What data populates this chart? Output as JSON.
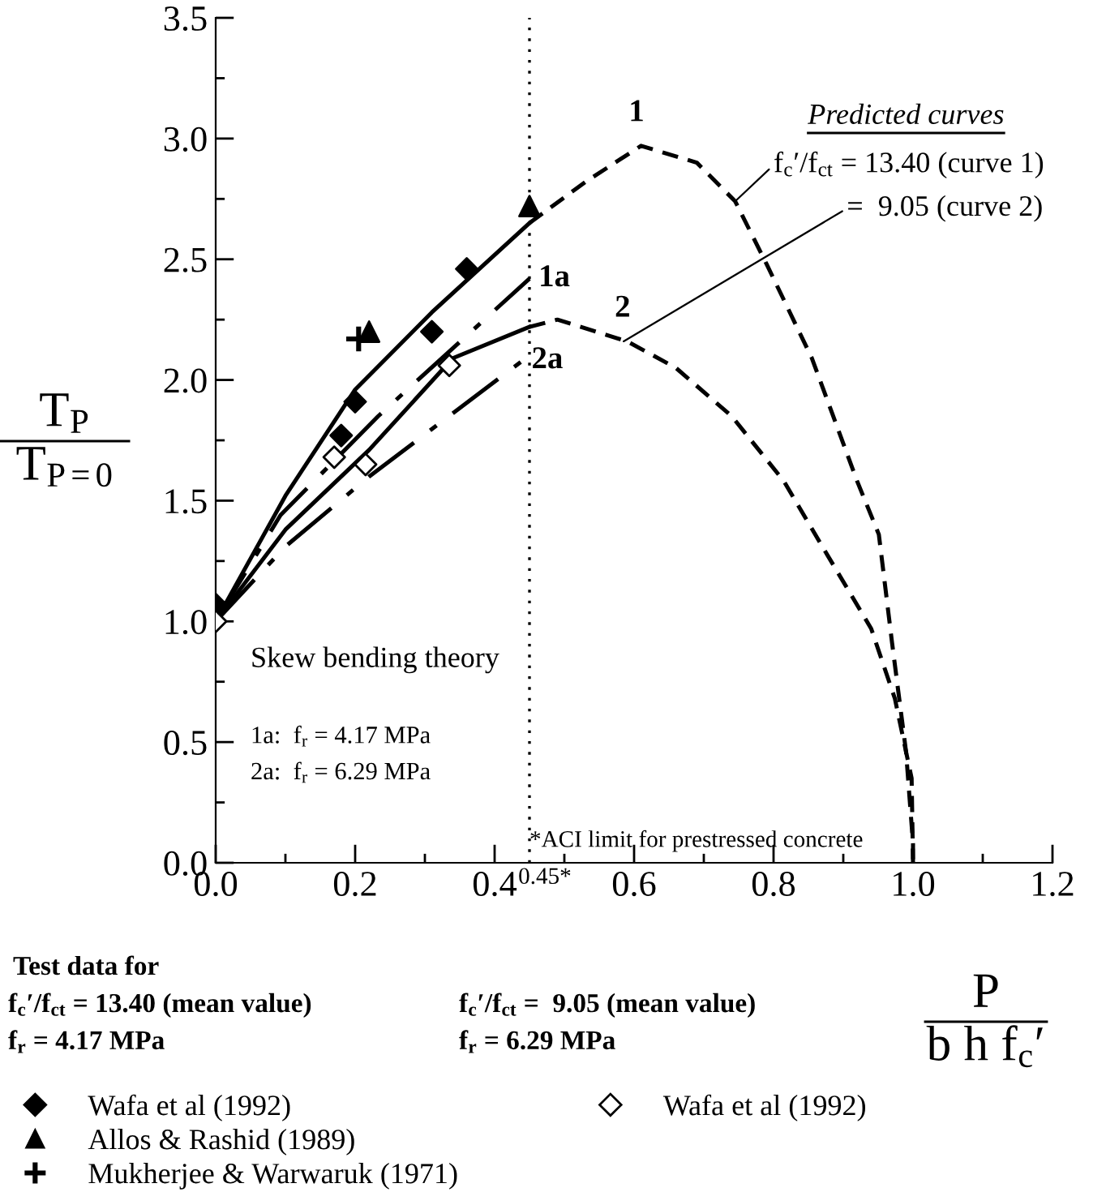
{
  "chart_data": {
    "type": "line",
    "xlabel": "P\nb h f$_{c}$′",
    "ylabel": "T$_{P}$\nT$_{P=0}$",
    "xlim": [
      0,
      1.2
    ],
    "ylim": [
      0,
      3.5
    ],
    "xticks": [
      {
        "value": 0,
        "label": "0.0"
      },
      {
        "value": 0.1,
        "label": null
      },
      0.2,
      {
        "value": 0.3,
        "label": null
      },
      0.4,
      {
        "value": 0.5,
        "label": null
      },
      0.6,
      {
        "value": 0.7,
        "label": null
      },
      0.8,
      {
        "value": 0.9,
        "label": null
      },
      {
        "value": 1,
        "label": "1.0"
      },
      {
        "value": 1.1,
        "label": null
      },
      1.2
    ],
    "yticks": [
      {
        "value": 0,
        "label": "0.0"
      },
      {
        "value": 0.25,
        "label": null
      },
      0.5,
      {
        "value": 0.75,
        "label": null
      },
      {
        "value": 1,
        "label": "1.0"
      },
      {
        "value": 1.25,
        "label": null
      },
      1.5,
      {
        "value": 1.75,
        "label": null
      },
      {
        "value": 2,
        "label": "2.0"
      },
      {
        "value": 2.25,
        "label": null
      },
      2.5,
      {
        "value": 2.75,
        "label": null
      },
      {
        "value": 3,
        "label": "3.0"
      },
      {
        "value": 3.25,
        "label": null
      },
      3.5
    ],
    "grid": false,
    "legend": "bottom left",
    "series": [
      {
        "line_style": "solid",
        "color": "#000000",
        "x": [
          0,
          0.1,
          0.2,
          0.31,
          0.45
        ],
        "values": [
          1.0,
          1.52,
          1.96,
          2.28,
          2.65
        ]
      },
      {
        "name": "1",
        "line_style": "dashed",
        "color": "#000000",
        "x": [
          0.45,
          0.53,
          0.61,
          0.69,
          0.745,
          0.79,
          0.855,
          0.92,
          0.951,
          0.97,
          0.99,
          1.0,
          1.0
        ],
        "values": [
          2.65,
          2.82,
          2.97,
          2.9,
          2.74,
          2.48,
          2.09,
          1.58,
          1.36,
          0.91,
          0.46,
          0.08,
          0
        ]
      },
      {
        "line_style": "solid",
        "color": "#000000",
        "x": [
          0,
          0.1,
          0.22,
          0.34,
          0.45
        ],
        "values": [
          1.0,
          1.38,
          1.71,
          2.09,
          2.22
        ]
      },
      {
        "name": "2",
        "line_style": "dashed",
        "color": "#000000",
        "x": [
          0.45,
          0.49,
          0.59,
          0.66,
          0.74,
          0.815,
          0.87,
          0.94,
          0.974,
          0.998,
          1.0
        ],
        "values": [
          2.22,
          2.25,
          2.16,
          2.05,
          1.85,
          1.58,
          1.31,
          0.97,
          0.68,
          0.35,
          0
        ]
      },
      {
        "name": "1a",
        "line_style": "dashdot",
        "color": "#000000",
        "x": [
          0,
          0.093,
          0.233,
          0.45
        ],
        "values": [
          1.0,
          1.44,
          1.85,
          2.42
        ]
      },
      {
        "name": "2a",
        "line_style": "dashdot",
        "color": "#000000",
        "x": [
          0,
          0.1,
          0.22,
          0.44
        ],
        "values": [
          1.0,
          1.31,
          1.6,
          2.08
        ]
      },
      {
        "type": "scatter",
        "name": "Wafa et al (1992)",
        "marker": "diamond",
        "color": "#000000",
        "x": [
          0,
          0.18,
          0.2,
          0.31,
          0.36
        ],
        "values": [
          1.07,
          1.77,
          1.91,
          2.2,
          2.46
        ]
      },
      {
        "type": "scatter",
        "name": "Allos & Rashid (1989)",
        "marker": "triangle",
        "color": "#000000",
        "x": [
          0.22,
          0.45
        ],
        "values": [
          2.2,
          2.72
        ]
      },
      {
        "type": "scatter",
        "name": "Mukherjee & Warwaruk (1971)",
        "marker": "cross",
        "color": "#000000",
        "x": [
          0.205
        ],
        "values": [
          2.17
        ]
      },
      {
        "type": "scatter",
        "name": "Wafa et al (1992)",
        "marker": "diamond",
        "color": "#ffffff",
        "x": [
          0,
          0.17,
          0.215,
          0.335
        ],
        "values": [
          1.0,
          1.68,
          1.65,
          2.06
        ]
      }
    ],
    "ref_lines": [
      {
        "axis": "x",
        "value": 0.45,
        "label": "*ACI limit for prestressed concrete",
        "line_style": "dotted",
        "color": "#000000"
      }
    ],
    "annotations": [
      "Predicted curves",
      {
        "text": "f$_{c}$′/f$_{ct}$ = 13.40 (curve 1)",
        "x": 0.745,
        "y": 2.74
      },
      {
        "text": "=  9.05 (curve 2)",
        "x": 0.585,
        "y": 2.16
      },
      "Skew bending theory",
      "1a:  f$_{r}$ = 4.17 MPa",
      "2a:  f$_{r}$ = 6.29 MPa",
      "Test data for",
      "f$_{c}$′/f$_{ct}$ = 13.40 (mean value)",
      "f$_{r}$ = 4.17 MPa",
      "f$_{c}$′/f$_{ct}$ =  9.05 (mean value)",
      "f$_{r}$ = 6.29 MPa",
      {
        "text": "0.45*",
        "x": 0.45,
        "y": 0
      }
    ]
  }
}
